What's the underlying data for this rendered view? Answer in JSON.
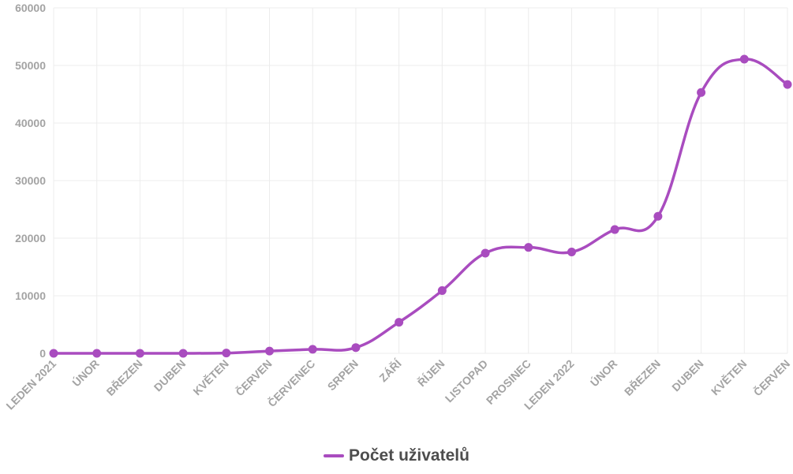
{
  "chart_data": {
    "type": "line",
    "title": "",
    "xlabel": "",
    "ylabel": "",
    "categories": [
      "LEDEN 2021",
      "ÚNOR",
      "BŘEZEN",
      "DUBEN",
      "KVĚTEN",
      "ČERVEN",
      "ČERVENEC",
      "SRPEN",
      "ZÁŘÍ",
      "ŘÍJEN",
      "LISTOPAD",
      "PROSINEC",
      "LEDEN 2022",
      "ÚNOR",
      "BŘEZEN",
      "DUBEN",
      "KVĚTEN",
      "ČERVEN"
    ],
    "series": [
      {
        "name": "Počet uživatelů",
        "color": "#a94cbf",
        "values": [
          0,
          0,
          0,
          0,
          50,
          400,
          700,
          1000,
          5400,
          10900,
          17400,
          18400,
          17600,
          21500,
          23800,
          45300,
          51100,
          46700
        ]
      }
    ],
    "ylim": [
      0,
      60000
    ],
    "yticks": [
      0,
      10000,
      20000,
      30000,
      40000,
      50000,
      60000
    ],
    "grid": true,
    "legend_position": "bottom"
  }
}
